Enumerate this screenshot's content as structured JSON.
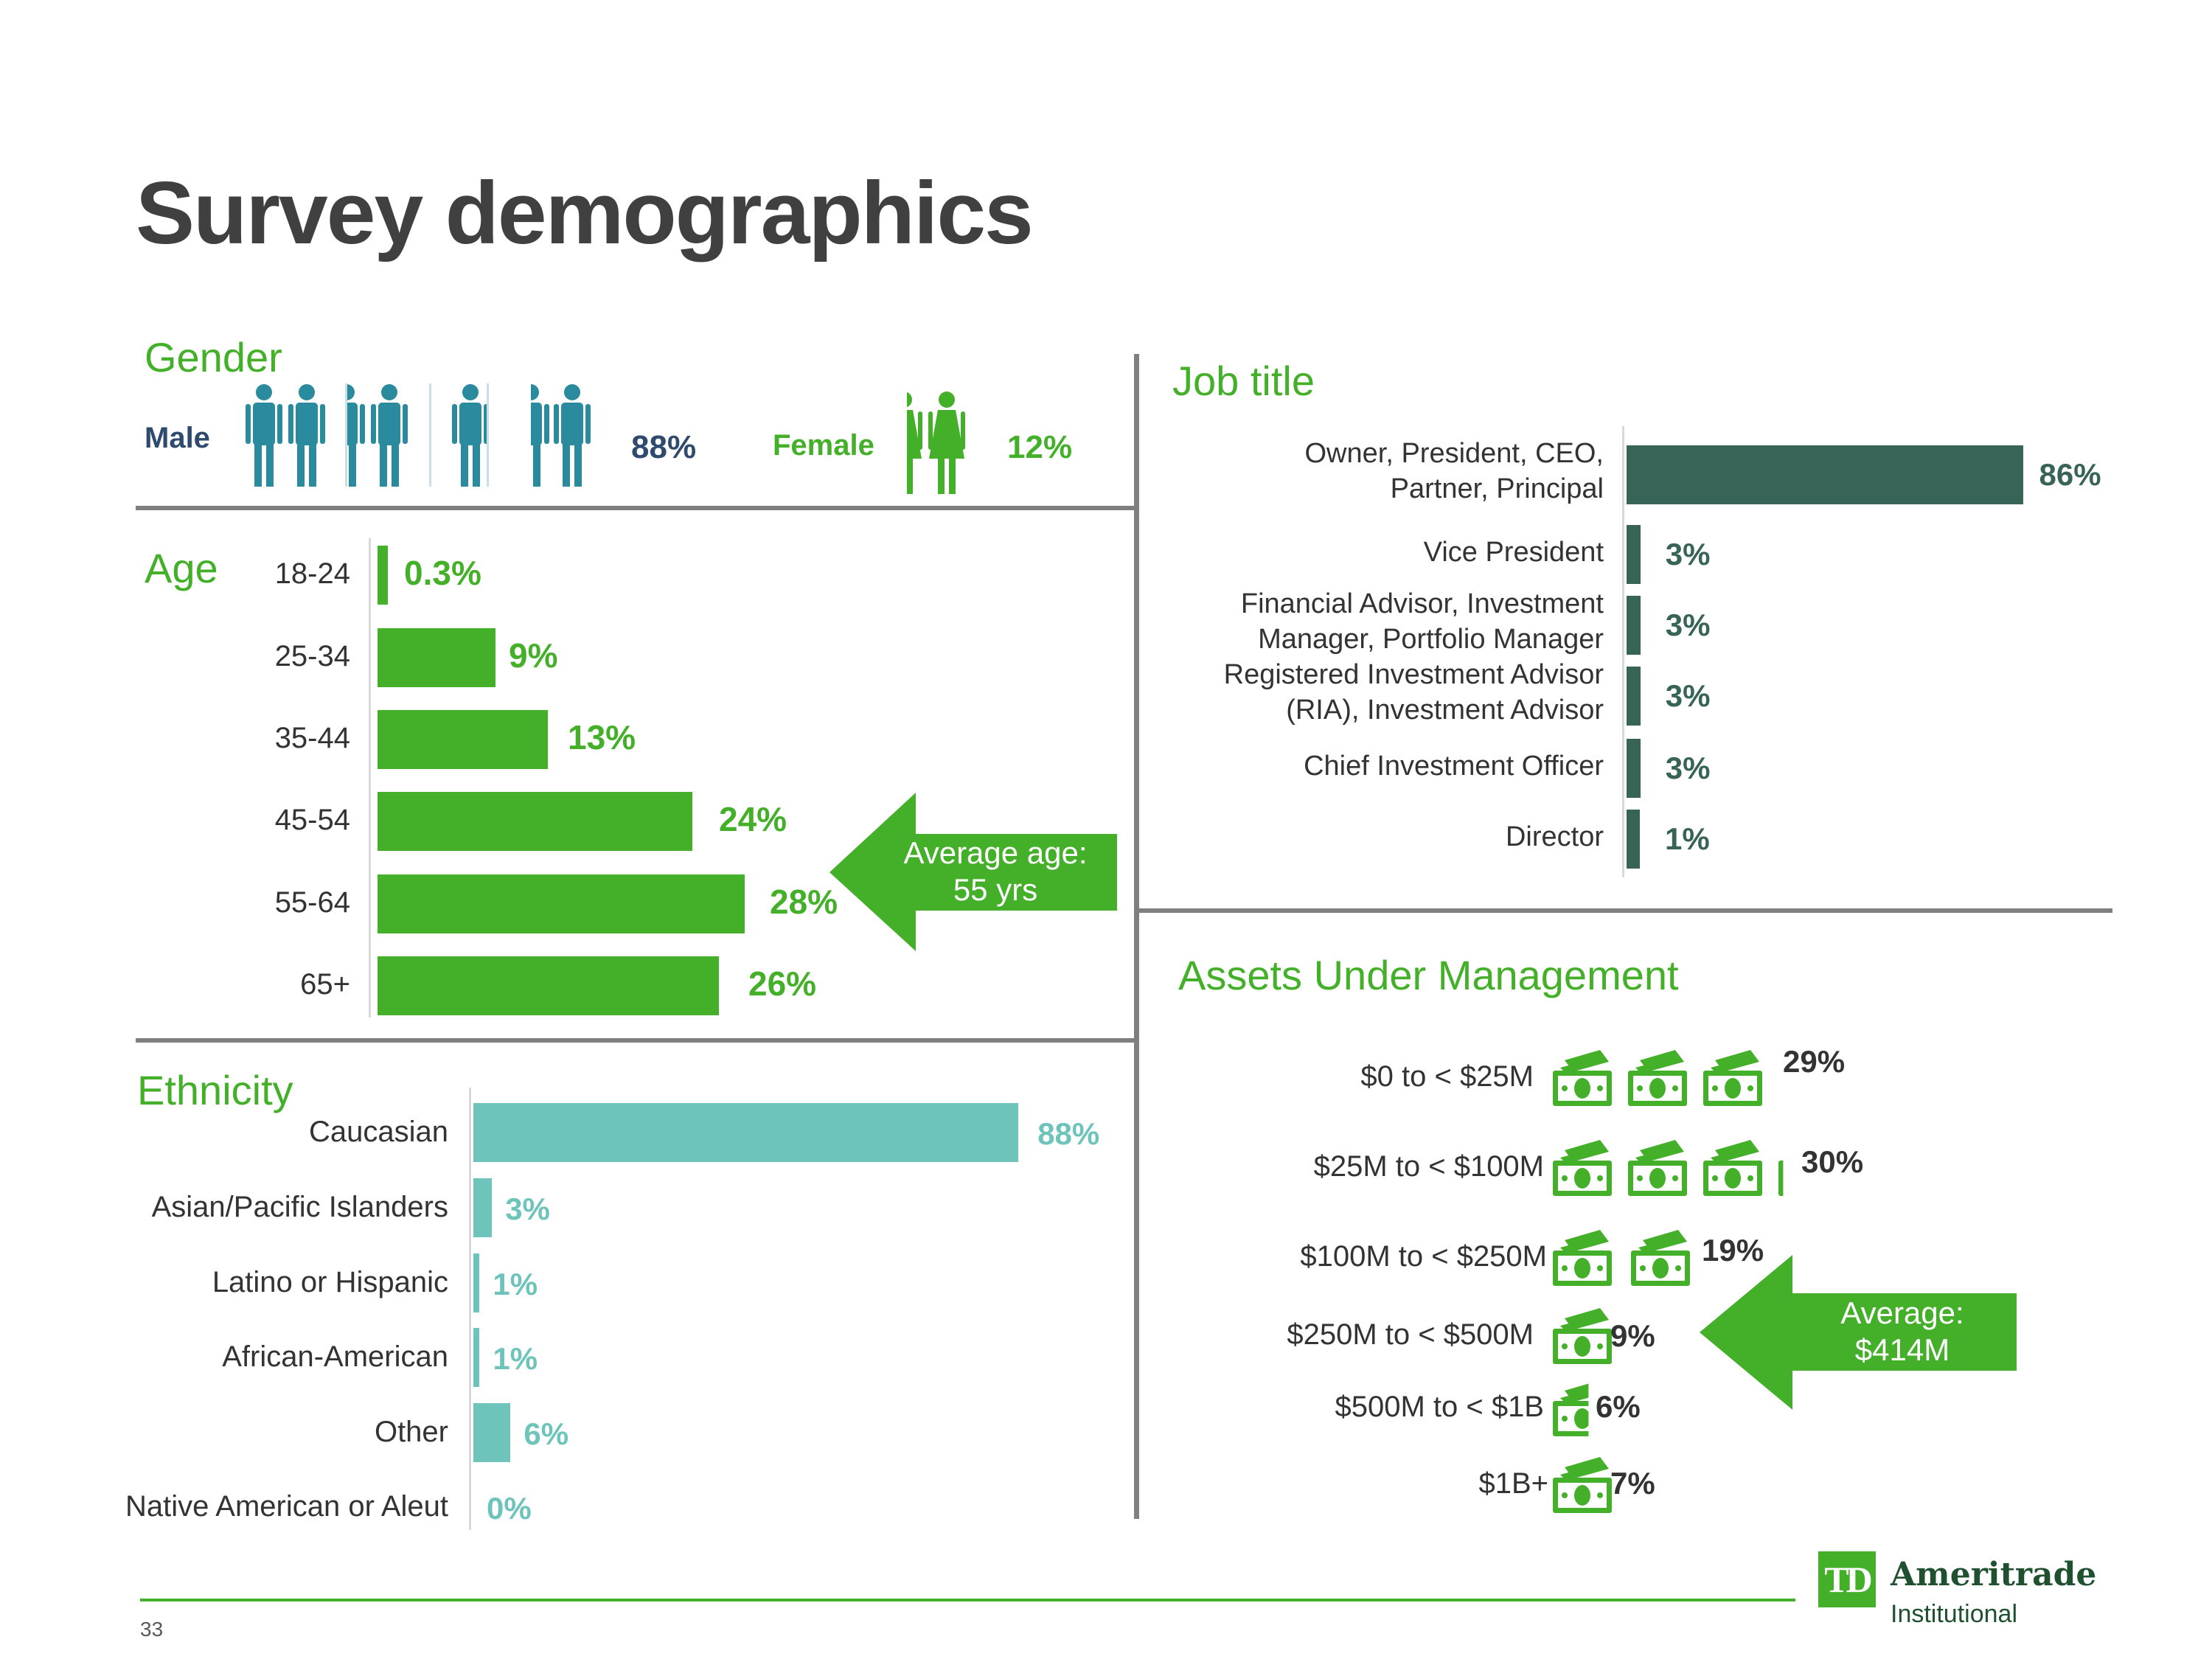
{
  "title": "Survey demographics",
  "gender": {
    "heading": "Gender",
    "male_label": "Male",
    "male_pct": "88%",
    "female_label": "Female",
    "female_pct": "12%",
    "male_color": "#2a8a9e",
    "female_color": "#44b02a",
    "male_icon": "person-male-icon",
    "female_icon": "person-female-icon"
  },
  "age": {
    "heading": "Age",
    "callout_line1": "Average age:",
    "callout_line2": "55 yrs",
    "color": "#44b02a"
  },
  "ethnicity": {
    "heading": "Ethnicity",
    "color": "#6ec4ba"
  },
  "job_title": {
    "heading": "Job title",
    "color": "#376456"
  },
  "aum": {
    "heading": "Assets Under Management",
    "callout_line1": "Average:",
    "callout_line2": "$414M",
    "icon": "money-stack-icon",
    "color": "#44b02a"
  },
  "footer": {
    "page_number": "33",
    "brand_mark": "TD",
    "brand_name": "Ameritrade",
    "brand_sub": "Institutional"
  },
  "chart_data": [
    {
      "type": "bar",
      "orientation": "horizontal",
      "title": "Age",
      "categories": [
        "18-24",
        "25-34",
        "35-44",
        "45-54",
        "55-64",
        "65+"
      ],
      "values": [
        0.3,
        9,
        13,
        24,
        28,
        26
      ],
      "labels": [
        "0.3%",
        "9%",
        "13%",
        "24%",
        "28%",
        "26%"
      ],
      "unit": "%",
      "color": "#44b02a"
    },
    {
      "type": "bar",
      "orientation": "horizontal",
      "title": "Ethnicity",
      "categories": [
        "Caucasian",
        "Asian/Pacific Islanders",
        "Latino or Hispanic",
        "African-American",
        "Other",
        "Native American or Aleut"
      ],
      "values": [
        88,
        3,
        1,
        1,
        6,
        0
      ],
      "labels": [
        "88%",
        "3%",
        "1%",
        "1%",
        "6%",
        "0%"
      ],
      "unit": "%",
      "color": "#6ec4ba"
    },
    {
      "type": "bar",
      "orientation": "horizontal",
      "title": "Job title",
      "categories": [
        [
          "Owner, President, CEO,",
          "Partner, Principal"
        ],
        [
          "Vice President"
        ],
        [
          "Financial Advisor, Investment",
          "Manager, Portfolio Manager"
        ],
        [
          "Registered Investment Advisor",
          "(RIA), Investment Advisor"
        ],
        [
          "Chief Investment Officer"
        ],
        [
          "Director"
        ]
      ],
      "values": [
        86,
        3,
        3,
        3,
        3,
        1
      ],
      "labels": [
        "86%",
        "3%",
        "3%",
        "3%",
        "3%",
        "1%"
      ],
      "unit": "%",
      "color": "#376456"
    },
    {
      "type": "bar",
      "orientation": "horizontal",
      "title": "Assets Under Management",
      "categories": [
        "$0 to < $25M",
        "$25M to <  $100M",
        "$100M to < $250M",
        "$250M to < $500M",
        "$500M to < $1B",
        "$1B+"
      ],
      "values": [
        29,
        30,
        19,
        9,
        6,
        7
      ],
      "labels": [
        "29%",
        "30%",
        "19%",
        "9%",
        "6%",
        "7%"
      ],
      "unit": "%",
      "icon_units": [
        3,
        3.1,
        2,
        1,
        0.6,
        1
      ],
      "color": "#44b02a"
    },
    {
      "type": "bar",
      "title": "Gender",
      "categories": [
        "Male",
        "Female"
      ],
      "values": [
        88,
        12
      ],
      "labels": [
        "88%",
        "12%"
      ],
      "unit": "%"
    }
  ]
}
